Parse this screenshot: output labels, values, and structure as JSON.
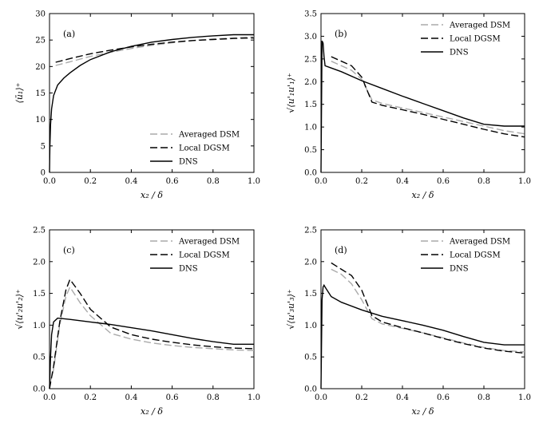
{
  "chart_data": [
    {
      "type": "line",
      "panel_label": "(a)",
      "xlabel": "x₂ / δ",
      "ylabel": "⟨ū₁⟩⁺",
      "xlim": [
        0,
        1
      ],
      "ylim": [
        0,
        30
      ],
      "xticks": [
        "0.0",
        "0.2",
        "0.4",
        "0.6",
        "0.8",
        "1.0"
      ],
      "yticks": [
        "0",
        "5",
        "10",
        "15",
        "20",
        "25",
        "30"
      ],
      "legend_position": "bottom-right",
      "series": [
        {
          "name": "Averaged DSM",
          "style": "dashed",
          "color": "#aaaaaa",
          "x": [
            0.03,
            0.1,
            0.2,
            0.3,
            0.4,
            0.5,
            0.6,
            0.7,
            0.8,
            0.9,
            1.0
          ],
          "y": [
            20.2,
            20.9,
            21.9,
            22.7,
            23.4,
            24.0,
            24.5,
            24.9,
            25.2,
            25.4,
            25.6
          ]
        },
        {
          "name": "Local DGSM",
          "style": "dashed",
          "color": "#000000",
          "x": [
            0.03,
            0.1,
            0.2,
            0.3,
            0.4,
            0.5,
            0.6,
            0.7,
            0.8,
            0.9,
            1.0
          ],
          "y": [
            20.8,
            21.5,
            22.4,
            23.1,
            23.7,
            24.2,
            24.6,
            24.9,
            25.1,
            25.3,
            25.4
          ]
        },
        {
          "name": "DNS",
          "style": "solid",
          "color": "#000000",
          "x": [
            0.0,
            0.002,
            0.005,
            0.01,
            0.02,
            0.04,
            0.07,
            0.1,
            0.15,
            0.2,
            0.3,
            0.4,
            0.5,
            0.6,
            0.7,
            0.8,
            0.9,
            1.0
          ],
          "y": [
            0,
            5,
            9,
            12,
            14.5,
            16.5,
            17.8,
            18.8,
            20.2,
            21.3,
            22.8,
            23.8,
            24.6,
            25.1,
            25.5,
            25.8,
            26.0,
            26.0
          ]
        }
      ]
    },
    {
      "type": "line",
      "panel_label": "(b)",
      "xlabel": "x₂ / δ",
      "ylabel": "√⟨u'₁u'₁⟩⁺",
      "xlim": [
        0,
        1
      ],
      "ylim": [
        0,
        3.5
      ],
      "xticks": [
        "0.0",
        "0.2",
        "0.4",
        "0.6",
        "0.8",
        "1.0"
      ],
      "yticks": [
        "0.0",
        "0.5",
        "1.0",
        "1.5",
        "2.0",
        "2.5",
        "3.0",
        "3.5"
      ],
      "legend_position": "top-right",
      "series": [
        {
          "name": "Averaged DSM",
          "style": "dashed",
          "color": "#aaaaaa",
          "x": [
            0.05,
            0.1,
            0.15,
            0.2,
            0.25,
            0.3,
            0.4,
            0.5,
            0.6,
            0.7,
            0.8,
            0.9,
            1.0
          ],
          "y": [
            2.45,
            2.35,
            2.25,
            2.05,
            1.6,
            1.52,
            1.42,
            1.32,
            1.22,
            1.12,
            1.02,
            0.92,
            0.85
          ]
        },
        {
          "name": "Local DGSM",
          "style": "dashed",
          "color": "#000000",
          "x": [
            0.05,
            0.1,
            0.15,
            0.2,
            0.25,
            0.3,
            0.4,
            0.5,
            0.6,
            0.7,
            0.8,
            0.9,
            1.0
          ],
          "y": [
            2.55,
            2.45,
            2.35,
            2.1,
            1.55,
            1.48,
            1.38,
            1.28,
            1.17,
            1.06,
            0.95,
            0.85,
            0.78
          ]
        },
        {
          "name": "DNS",
          "style": "solid",
          "color": "#000000",
          "x": [
            0.0,
            0.005,
            0.01,
            0.015,
            0.02,
            0.05,
            0.1,
            0.2,
            0.3,
            0.4,
            0.5,
            0.6,
            0.7,
            0.8,
            0.9,
            1.0
          ],
          "y": [
            0.0,
            2.9,
            2.85,
            2.55,
            2.35,
            2.3,
            2.22,
            2.02,
            1.85,
            1.68,
            1.52,
            1.36,
            1.2,
            1.06,
            1.02,
            1.02
          ]
        }
      ]
    },
    {
      "type": "line",
      "panel_label": "(c)",
      "xlabel": "x₂ / δ",
      "ylabel": "√⟨u'₂u'₂⟩⁺",
      "xlim": [
        0,
        1
      ],
      "ylim": [
        0,
        2.5
      ],
      "xticks": [
        "0.0",
        "0.2",
        "0.4",
        "0.6",
        "0.8",
        "1.0"
      ],
      "yticks": [
        "0.0",
        "0.5",
        "1.0",
        "1.5",
        "2.0",
        "2.5"
      ],
      "legend_position": "top-right",
      "series": [
        {
          "name": "Averaged DSM",
          "style": "dashed",
          "color": "#aaaaaa",
          "x": [
            0.0,
            0.02,
            0.05,
            0.08,
            0.1,
            0.15,
            0.2,
            0.3,
            0.4,
            0.5,
            0.6,
            0.7,
            0.8,
            0.9,
            1.0
          ],
          "y": [
            0.05,
            0.3,
            1.0,
            1.45,
            1.6,
            1.35,
            1.15,
            0.87,
            0.78,
            0.72,
            0.68,
            0.65,
            0.63,
            0.61,
            0.6
          ]
        },
        {
          "name": "Local DGSM",
          "style": "dashed",
          "color": "#000000",
          "x": [
            0.0,
            0.02,
            0.05,
            0.08,
            0.1,
            0.15,
            0.2,
            0.3,
            0.4,
            0.5,
            0.6,
            0.7,
            0.8,
            0.9,
            1.0
          ],
          "y": [
            0.0,
            0.35,
            1.05,
            1.55,
            1.72,
            1.5,
            1.25,
            0.97,
            0.85,
            0.78,
            0.73,
            0.69,
            0.66,
            0.64,
            0.63
          ]
        },
        {
          "name": "DNS",
          "style": "solid",
          "color": "#000000",
          "x": [
            0.0,
            0.005,
            0.01,
            0.02,
            0.04,
            0.1,
            0.2,
            0.3,
            0.4,
            0.5,
            0.6,
            0.7,
            0.8,
            0.9,
            1.0
          ],
          "y": [
            0.0,
            0.5,
            0.85,
            1.05,
            1.11,
            1.09,
            1.05,
            1.01,
            0.96,
            0.91,
            0.85,
            0.79,
            0.74,
            0.7,
            0.7
          ]
        }
      ]
    },
    {
      "type": "line",
      "panel_label": "(d)",
      "xlabel": "x₂ / δ",
      "ylabel": "√⟨u'₃u'₃⟩⁺",
      "xlim": [
        0,
        1
      ],
      "ylim": [
        0,
        2.5
      ],
      "xticks": [
        "0.0",
        "0.2",
        "0.4",
        "0.6",
        "0.8",
        "1.0"
      ],
      "yticks": [
        "0.0",
        "0.5",
        "1.0",
        "1.5",
        "2.0",
        "2.5"
      ],
      "legend_position": "top-right",
      "series": [
        {
          "name": "Averaged DSM",
          "style": "dashed",
          "color": "#aaaaaa",
          "x": [
            0.05,
            0.1,
            0.15,
            0.2,
            0.25,
            0.3,
            0.4,
            0.5,
            0.6,
            0.7,
            0.8,
            0.9,
            1.0
          ],
          "y": [
            1.88,
            1.8,
            1.65,
            1.4,
            1.1,
            1.02,
            0.95,
            0.88,
            0.8,
            0.72,
            0.65,
            0.6,
            0.58
          ]
        },
        {
          "name": "Local DGSM",
          "style": "dashed",
          "color": "#000000",
          "x": [
            0.05,
            0.1,
            0.15,
            0.2,
            0.25,
            0.3,
            0.4,
            0.5,
            0.6,
            0.7,
            0.8,
            0.9,
            1.0
          ],
          "y": [
            1.98,
            1.88,
            1.78,
            1.55,
            1.15,
            1.05,
            0.96,
            0.88,
            0.79,
            0.71,
            0.64,
            0.59,
            0.56
          ]
        },
        {
          "name": "DNS",
          "style": "solid",
          "color": "#000000",
          "x": [
            0.0,
            0.005,
            0.01,
            0.015,
            0.02,
            0.05,
            0.1,
            0.2,
            0.3,
            0.4,
            0.5,
            0.6,
            0.7,
            0.8,
            0.9,
            1.0
          ],
          "y": [
            0.0,
            1.4,
            1.6,
            1.63,
            1.6,
            1.45,
            1.36,
            1.24,
            1.14,
            1.07,
            1.0,
            0.92,
            0.82,
            0.73,
            0.69,
            0.69
          ]
        }
      ]
    }
  ]
}
